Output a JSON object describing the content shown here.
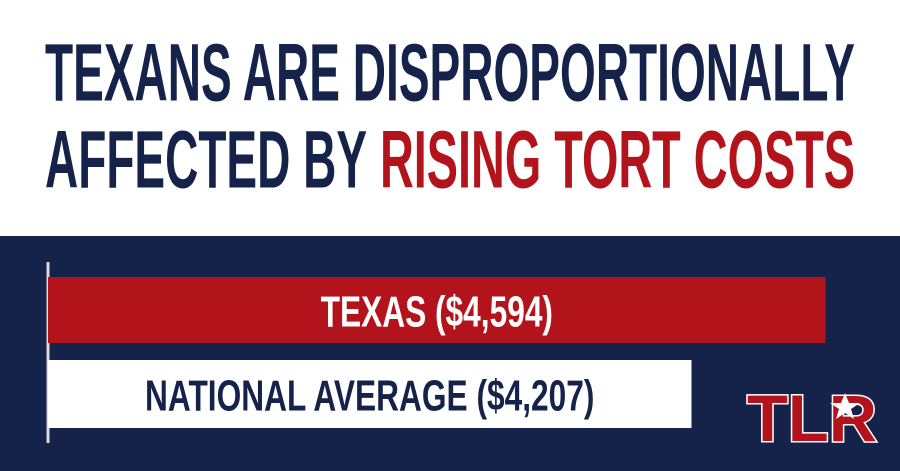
{
  "chart_data": {
    "type": "barh",
    "title": [
      "TEXANS ARE DISPROPORTIONALLY",
      "AFFECTED BY"
    ],
    "title_highlight": "RISING TORT COSTS",
    "categories": [
      "TEXAS ($4,594)",
      "NATIONAL AVERAGE ($4,207)"
    ],
    "values": [
      4594,
      4207
    ],
    "colors": [
      "#b3141c",
      "#ffffff"
    ],
    "label_colors": [
      "#ffffff",
      "#15234a"
    ],
    "xlim": [
      2350,
      4650
    ],
    "logo": "TLR"
  }
}
